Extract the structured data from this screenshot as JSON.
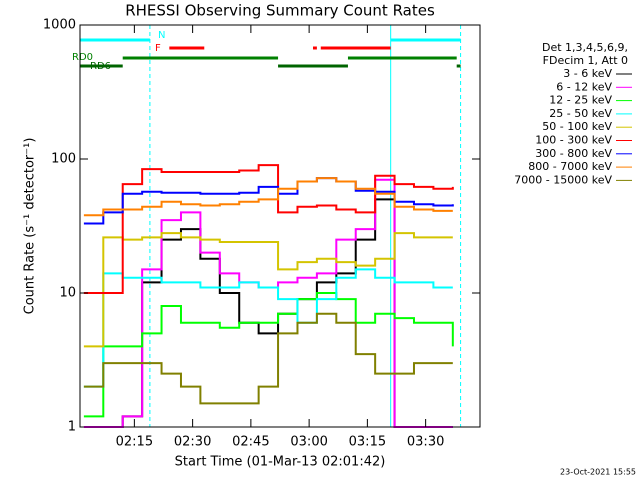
{
  "chart_data": {
    "type": "line",
    "title": "RHESSI Observing Summary Count Rates",
    "xlabel": "Start Time (01-Mar-13 02:01:42)",
    "ylabel": "Count Rate (s⁻¹ detector⁻¹)",
    "footer": "23-Oct-2021 15:55",
    "legend_title": [
      "Det 1,3,4,5,6,9,",
      "FDecim 1, Att 0"
    ],
    "log_y": true,
    "xlim": [
      "02:01",
      "03:44"
    ],
    "xticks": [
      "02:15",
      "02:30",
      "02:45",
      "03:00",
      "03:15",
      "03:30"
    ],
    "ylim": [
      1,
      1000
    ],
    "yticks": [
      1,
      10,
      100,
      1000
    ],
    "x": [
      "02:02",
      "02:07",
      "02:12",
      "02:17",
      "02:22",
      "02:27",
      "02:32",
      "02:37",
      "02:42",
      "02:47",
      "02:52",
      "02:57",
      "03:02",
      "03:07",
      "03:12",
      "03:17",
      "03:22",
      "03:27",
      "03:32",
      "03:37"
    ],
    "series": [
      {
        "name": "3 - 6 keV",
        "color": "#000000",
        "values": [
          null,
          1,
          1.2,
          12,
          25,
          30,
          18,
          10,
          6,
          5,
          7,
          9,
          12,
          14,
          25,
          50,
          1,
          1,
          1,
          1
        ]
      },
      {
        "name": "6 - 12 keV",
        "color": "#ff00ff",
        "values": [
          1,
          1,
          1.2,
          15,
          35,
          40,
          20,
          14,
          12,
          11,
          12,
          13,
          14,
          25,
          30,
          70,
          1,
          1,
          1,
          1
        ]
      },
      {
        "name": "12 - 25 keV",
        "color": "#00ff00",
        "values": [
          1.2,
          4,
          4,
          5,
          8,
          6,
          6,
          5.5,
          6,
          6,
          7,
          9,
          10,
          9,
          6,
          7,
          6.5,
          6,
          6,
          4
        ]
      },
      {
        "name": "25 - 50 keV",
        "color": "#00ffff",
        "values": [
          2,
          14,
          13,
          13,
          12,
          12,
          11,
          11,
          12,
          11,
          9,
          6,
          9,
          13,
          15,
          13,
          12,
          12,
          11,
          11
        ]
      },
      {
        "name": "50 - 100 keV",
        "color": "#d4c400",
        "values": [
          4,
          26,
          25,
          26,
          28,
          26,
          25,
          24,
          24,
          24,
          15,
          17,
          18,
          17,
          16,
          18,
          28,
          26,
          26,
          26
        ]
      },
      {
        "name": "100 - 300 keV",
        "color": "#ff0000",
        "values": [
          10,
          10,
          65,
          84,
          80,
          80,
          80,
          80,
          82,
          90,
          40,
          44,
          45,
          42,
          40,
          75,
          65,
          62,
          60,
          62
        ]
      },
      {
        "name": "300 - 800 keV",
        "color": "#0000ff",
        "values": [
          33,
          40,
          55,
          57,
          56,
          56,
          55,
          55,
          56,
          62,
          55,
          68,
          72,
          68,
          58,
          57,
          48,
          46,
          45,
          46
        ]
      },
      {
        "name": "800 - 7000 keV",
        "color": "#ff8000",
        "values": [
          38,
          42,
          42,
          44,
          48,
          46,
          45,
          46,
          48,
          50,
          60,
          68,
          72,
          68,
          60,
          55,
          44,
          42,
          41,
          41
        ]
      },
      {
        "name": "7000 - 15000 keV",
        "color": "#808000",
        "values": [
          2,
          3,
          3,
          3,
          2.5,
          2,
          1.5,
          1.5,
          1.5,
          2,
          5,
          6,
          7,
          6,
          3.5,
          2.5,
          2.5,
          3,
          3,
          3
        ]
      }
    ],
    "flags": [
      {
        "label": "N",
        "color": "#00ffff",
        "intervals": [
          [
            "02:01",
            "02:19"
          ],
          [
            "03:21",
            "03:39"
          ]
        ]
      },
      {
        "label": "F",
        "color": "#ff0000",
        "intervals": [
          [
            "02:24",
            "02:33"
          ],
          [
            "03:01",
            "03:02"
          ],
          [
            "03:03",
            "03:21"
          ]
        ]
      },
      {
        "label": "RD0",
        "color": "#008000",
        "intervals": [
          [
            "02:12",
            "02:52"
          ],
          [
            "03:10",
            "03:38"
          ]
        ]
      },
      {
        "label": "RD6",
        "color": "#006400",
        "intervals": [
          [
            "02:01",
            "02:12"
          ],
          [
            "02:52",
            "03:10"
          ],
          [
            "03:38",
            "03:39"
          ]
        ]
      }
    ],
    "vlines": [
      {
        "x": "02:19",
        "color": "#00ffff",
        "dashed": true
      },
      {
        "x": "03:21",
        "color": "#00ffff",
        "dashed": false
      },
      {
        "x": "03:39",
        "color": "#00ffff",
        "dashed": true
      }
    ]
  }
}
